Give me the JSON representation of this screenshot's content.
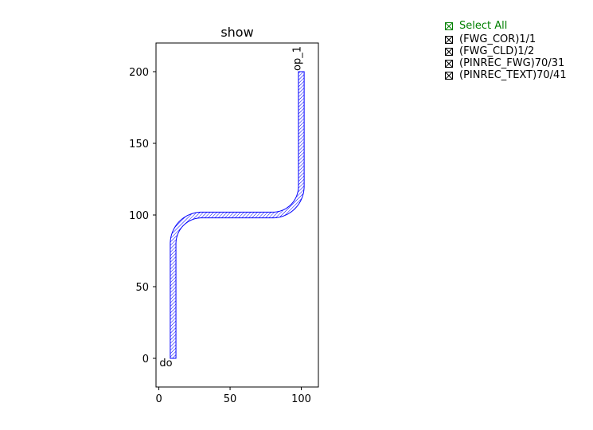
{
  "chart_data": {
    "type": "layout",
    "title": "show",
    "xlim": [
      -2,
      112
    ],
    "ylim": [
      -20,
      220
    ],
    "xticks": [
      0,
      50,
      100
    ],
    "yticks": [
      0,
      50,
      100,
      150,
      200
    ],
    "grid": false,
    "waveguide": {
      "layer": "(PINREC_FWG)70/31",
      "color": "#0000ff",
      "width": 4,
      "path": [
        {
          "x": 10,
          "y": 0
        },
        {
          "x": 10,
          "y": 80
        },
        {
          "arc": {
            "cx": 30,
            "cy": 80,
            "r": 20,
            "from": 180,
            "to": 90
          }
        },
        {
          "x": 80,
          "y": 100
        },
        {
          "arc": {
            "cx": 80,
            "cy": 120,
            "r": 20,
            "from": 270,
            "to": 360
          }
        },
        {
          "x": 100,
          "y": 200
        }
      ]
    },
    "ports": [
      {
        "name": "o1",
        "x": 10,
        "y": 0,
        "label": "do",
        "rotation": 0
      },
      {
        "name": "op_1",
        "x": 100,
        "y": 200,
        "label": "op_1",
        "rotation": 90
      }
    ]
  },
  "legend": {
    "select_all": "Select All",
    "select_all_color": "#008000",
    "layers": [
      "(FWG_COR)1/1",
      "(FWG_CLD)1/2",
      "(PINREC_FWG)70/31",
      "(PINREC_TEXT)70/41"
    ],
    "all_checked": true
  }
}
